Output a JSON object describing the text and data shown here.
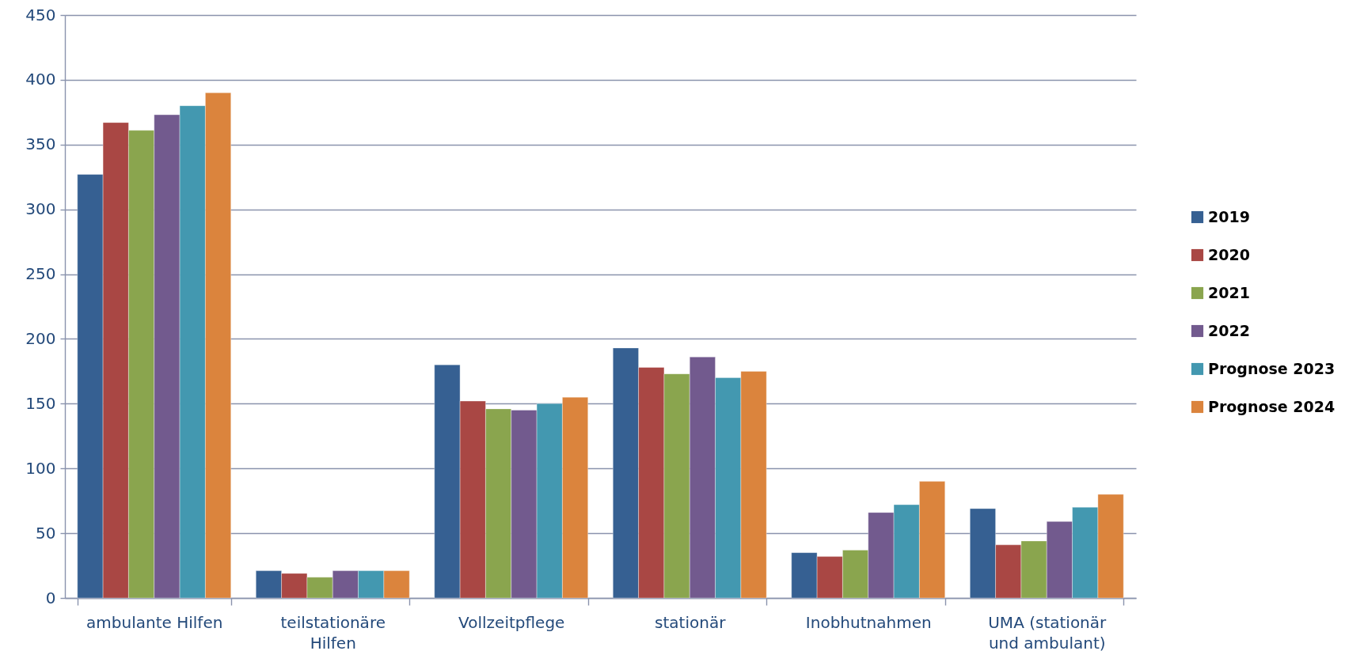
{
  "chart_data": {
    "type": "bar",
    "categories": [
      "ambulante Hilfen",
      "teilstationäre Hilfen",
      "Vollzeitpflege",
      "stationär",
      "Inobhutnahmen",
      "UMA (stationär und ambulant)"
    ],
    "series": [
      {
        "name": "2019",
        "color": "#366092",
        "values": [
          327,
          21,
          180,
          193,
          35,
          69
        ]
      },
      {
        "name": "2020",
        "color": "#a94744",
        "values": [
          367,
          19,
          152,
          178,
          32,
          41
        ]
      },
      {
        "name": "2021",
        "color": "#8aa54e",
        "values": [
          361,
          16,
          146,
          173,
          37,
          44
        ]
      },
      {
        "name": "2022",
        "color": "#725a8e",
        "values": [
          373,
          21,
          145,
          186,
          66,
          59
        ]
      },
      {
        "name": "Prognose 2023",
        "color": "#4398b0",
        "values": [
          380,
          21,
          150,
          170,
          72,
          70
        ]
      },
      {
        "name": "Prognose 2024",
        "color": "#db843d",
        "values": [
          390,
          21,
          155,
          175,
          90,
          80
        ]
      }
    ],
    "ylim": [
      0,
      450
    ],
    "yticks": [
      0,
      50,
      100,
      150,
      200,
      250,
      300,
      350,
      400,
      450
    ],
    "grid": "y",
    "legend": "right"
  }
}
